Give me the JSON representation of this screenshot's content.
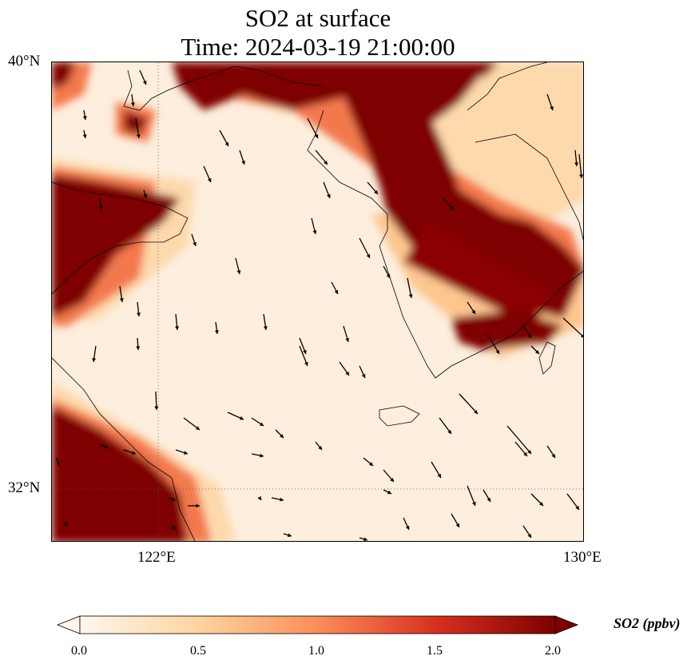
{
  "title": {
    "line1": "SO2 at surface",
    "line2": "Time: 2024-03-19 21:00:00"
  },
  "map": {
    "lon_range": [
      120,
      130
    ],
    "lat_range": [
      31,
      40
    ],
    "lat_ticks": [
      "40°N",
      "32°N"
    ],
    "lon_ticks": [
      "122°E",
      "130°E"
    ],
    "gridlines": {
      "lon": [
        122
      ],
      "lat": [
        32
      ],
      "style": "dotted"
    }
  },
  "colorbar": {
    "label": "SO2 (ppbv)",
    "min": 0.0,
    "max": 2.0,
    "ticks": [
      "0.0",
      "0.5",
      "1.0",
      "1.5",
      "2.0"
    ],
    "colormap": "OrRd",
    "colors": [
      "#fff7ec",
      "#fdd49e",
      "#fc8d59",
      "#d7301f",
      "#7f0000"
    ],
    "extend": "both"
  }
}
